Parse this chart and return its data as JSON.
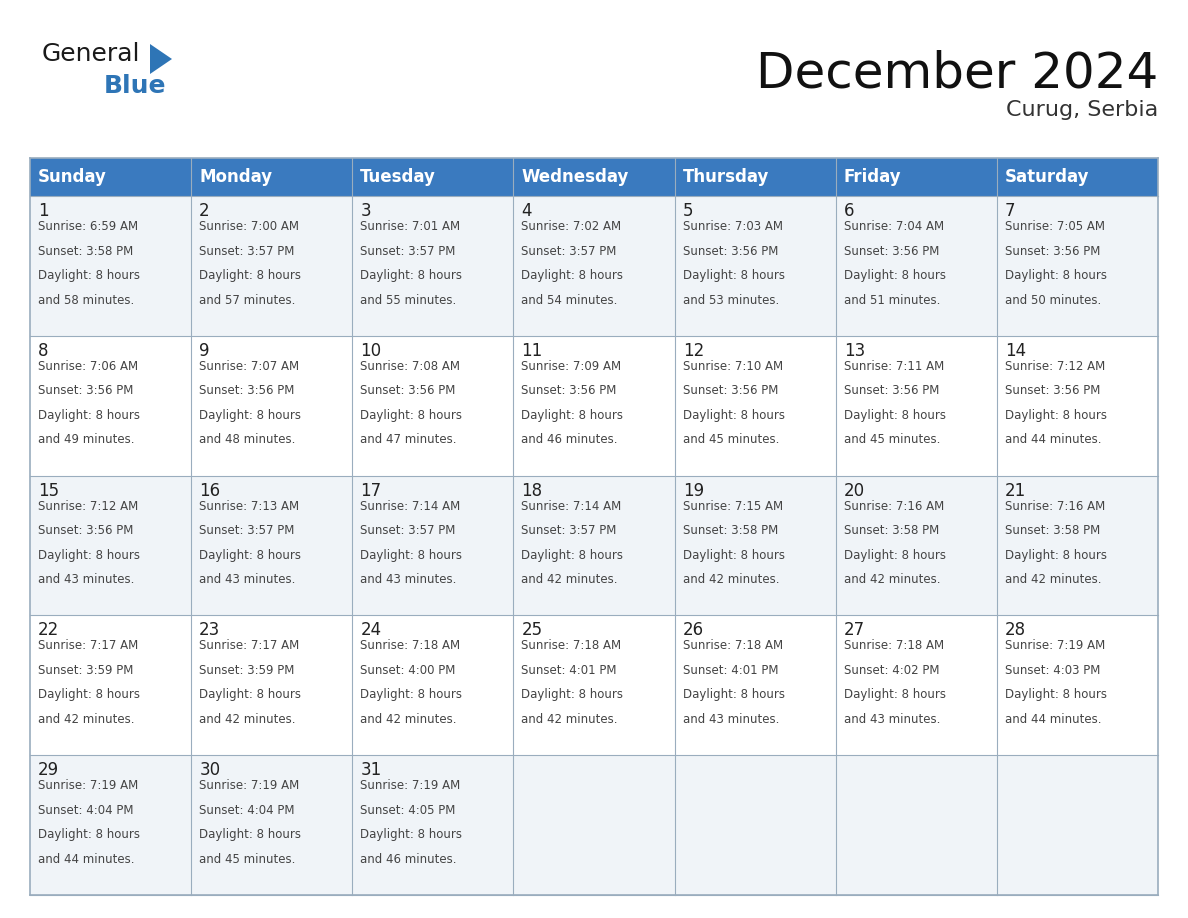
{
  "title": "December 2024",
  "subtitle": "Curug, Serbia",
  "header_color": "#3a7abf",
  "header_text_color": "#ffffff",
  "bg_color": "#ffffff",
  "cell_bg_row0": "#f0f4f8",
  "cell_bg_row1": "#ffffff",
  "cell_bg_row2": "#f0f4f8",
  "cell_bg_row3": "#ffffff",
  "cell_bg_row4": "#f0f4f8",
  "day_headers": [
    "Sunday",
    "Monday",
    "Tuesday",
    "Wednesday",
    "Thursday",
    "Friday",
    "Saturday"
  ],
  "days_data": [
    {
      "day": 1,
      "col": 0,
      "row": 0,
      "sunrise": "6:59 AM",
      "sunset": "3:58 PM",
      "daylight_l1": "Daylight: 8 hours",
      "daylight_l2": "and 58 minutes."
    },
    {
      "day": 2,
      "col": 1,
      "row": 0,
      "sunrise": "7:00 AM",
      "sunset": "3:57 PM",
      "daylight_l1": "Daylight: 8 hours",
      "daylight_l2": "and 57 minutes."
    },
    {
      "day": 3,
      "col": 2,
      "row": 0,
      "sunrise": "7:01 AM",
      "sunset": "3:57 PM",
      "daylight_l1": "Daylight: 8 hours",
      "daylight_l2": "and 55 minutes."
    },
    {
      "day": 4,
      "col": 3,
      "row": 0,
      "sunrise": "7:02 AM",
      "sunset": "3:57 PM",
      "daylight_l1": "Daylight: 8 hours",
      "daylight_l2": "and 54 minutes."
    },
    {
      "day": 5,
      "col": 4,
      "row": 0,
      "sunrise": "7:03 AM",
      "sunset": "3:56 PM",
      "daylight_l1": "Daylight: 8 hours",
      "daylight_l2": "and 53 minutes."
    },
    {
      "day": 6,
      "col": 5,
      "row": 0,
      "sunrise": "7:04 AM",
      "sunset": "3:56 PM",
      "daylight_l1": "Daylight: 8 hours",
      "daylight_l2": "and 51 minutes."
    },
    {
      "day": 7,
      "col": 6,
      "row": 0,
      "sunrise": "7:05 AM",
      "sunset": "3:56 PM",
      "daylight_l1": "Daylight: 8 hours",
      "daylight_l2": "and 50 minutes."
    },
    {
      "day": 8,
      "col": 0,
      "row": 1,
      "sunrise": "7:06 AM",
      "sunset": "3:56 PM",
      "daylight_l1": "Daylight: 8 hours",
      "daylight_l2": "and 49 minutes."
    },
    {
      "day": 9,
      "col": 1,
      "row": 1,
      "sunrise": "7:07 AM",
      "sunset": "3:56 PM",
      "daylight_l1": "Daylight: 8 hours",
      "daylight_l2": "and 48 minutes."
    },
    {
      "day": 10,
      "col": 2,
      "row": 1,
      "sunrise": "7:08 AM",
      "sunset": "3:56 PM",
      "daylight_l1": "Daylight: 8 hours",
      "daylight_l2": "and 47 minutes."
    },
    {
      "day": 11,
      "col": 3,
      "row": 1,
      "sunrise": "7:09 AM",
      "sunset": "3:56 PM",
      "daylight_l1": "Daylight: 8 hours",
      "daylight_l2": "and 46 minutes."
    },
    {
      "day": 12,
      "col": 4,
      "row": 1,
      "sunrise": "7:10 AM",
      "sunset": "3:56 PM",
      "daylight_l1": "Daylight: 8 hours",
      "daylight_l2": "and 45 minutes."
    },
    {
      "day": 13,
      "col": 5,
      "row": 1,
      "sunrise": "7:11 AM",
      "sunset": "3:56 PM",
      "daylight_l1": "Daylight: 8 hours",
      "daylight_l2": "and 45 minutes."
    },
    {
      "day": 14,
      "col": 6,
      "row": 1,
      "sunrise": "7:12 AM",
      "sunset": "3:56 PM",
      "daylight_l1": "Daylight: 8 hours",
      "daylight_l2": "and 44 minutes."
    },
    {
      "day": 15,
      "col": 0,
      "row": 2,
      "sunrise": "7:12 AM",
      "sunset": "3:56 PM",
      "daylight_l1": "Daylight: 8 hours",
      "daylight_l2": "and 43 minutes."
    },
    {
      "day": 16,
      "col": 1,
      "row": 2,
      "sunrise": "7:13 AM",
      "sunset": "3:57 PM",
      "daylight_l1": "Daylight: 8 hours",
      "daylight_l2": "and 43 minutes."
    },
    {
      "day": 17,
      "col": 2,
      "row": 2,
      "sunrise": "7:14 AM",
      "sunset": "3:57 PM",
      "daylight_l1": "Daylight: 8 hours",
      "daylight_l2": "and 43 minutes."
    },
    {
      "day": 18,
      "col": 3,
      "row": 2,
      "sunrise": "7:14 AM",
      "sunset": "3:57 PM",
      "daylight_l1": "Daylight: 8 hours",
      "daylight_l2": "and 42 minutes."
    },
    {
      "day": 19,
      "col": 4,
      "row": 2,
      "sunrise": "7:15 AM",
      "sunset": "3:58 PM",
      "daylight_l1": "Daylight: 8 hours",
      "daylight_l2": "and 42 minutes."
    },
    {
      "day": 20,
      "col": 5,
      "row": 2,
      "sunrise": "7:16 AM",
      "sunset": "3:58 PM",
      "daylight_l1": "Daylight: 8 hours",
      "daylight_l2": "and 42 minutes."
    },
    {
      "day": 21,
      "col": 6,
      "row": 2,
      "sunrise": "7:16 AM",
      "sunset": "3:58 PM",
      "daylight_l1": "Daylight: 8 hours",
      "daylight_l2": "and 42 minutes."
    },
    {
      "day": 22,
      "col": 0,
      "row": 3,
      "sunrise": "7:17 AM",
      "sunset": "3:59 PM",
      "daylight_l1": "Daylight: 8 hours",
      "daylight_l2": "and 42 minutes."
    },
    {
      "day": 23,
      "col": 1,
      "row": 3,
      "sunrise": "7:17 AM",
      "sunset": "3:59 PM",
      "daylight_l1": "Daylight: 8 hours",
      "daylight_l2": "and 42 minutes."
    },
    {
      "day": 24,
      "col": 2,
      "row": 3,
      "sunrise": "7:18 AM",
      "sunset": "4:00 PM",
      "daylight_l1": "Daylight: 8 hours",
      "daylight_l2": "and 42 minutes."
    },
    {
      "day": 25,
      "col": 3,
      "row": 3,
      "sunrise": "7:18 AM",
      "sunset": "4:01 PM",
      "daylight_l1": "Daylight: 8 hours",
      "daylight_l2": "and 42 minutes."
    },
    {
      "day": 26,
      "col": 4,
      "row": 3,
      "sunrise": "7:18 AM",
      "sunset": "4:01 PM",
      "daylight_l1": "Daylight: 8 hours",
      "daylight_l2": "and 43 minutes."
    },
    {
      "day": 27,
      "col": 5,
      "row": 3,
      "sunrise": "7:18 AM",
      "sunset": "4:02 PM",
      "daylight_l1": "Daylight: 8 hours",
      "daylight_l2": "and 43 minutes."
    },
    {
      "day": 28,
      "col": 6,
      "row": 3,
      "sunrise": "7:19 AM",
      "sunset": "4:03 PM",
      "daylight_l1": "Daylight: 8 hours",
      "daylight_l2": "and 44 minutes."
    },
    {
      "day": 29,
      "col": 0,
      "row": 4,
      "sunrise": "7:19 AM",
      "sunset": "4:04 PM",
      "daylight_l1": "Daylight: 8 hours",
      "daylight_l2": "and 44 minutes."
    },
    {
      "day": 30,
      "col": 1,
      "row": 4,
      "sunrise": "7:19 AM",
      "sunset": "4:04 PM",
      "daylight_l1": "Daylight: 8 hours",
      "daylight_l2": "and 45 minutes."
    },
    {
      "day": 31,
      "col": 2,
      "row": 4,
      "sunrise": "7:19 AM",
      "sunset": "4:05 PM",
      "daylight_l1": "Daylight: 8 hours",
      "daylight_l2": "and 46 minutes."
    }
  ],
  "num_rows": 5,
  "logo_text_general": "General",
  "logo_text_blue": "Blue",
  "logo_triangle_color": "#2e75b6",
  "logo_general_color": "#1a1a1a",
  "logo_blue_color": "#2e75b6",
  "grid_line_color": "#9aadbe",
  "title_fontsize": 36,
  "subtitle_fontsize": 16,
  "date_font_size": 12,
  "cell_text_font_size": 8.5,
  "header_font_size": 12,
  "logo_general_fontsize": 18,
  "logo_blue_fontsize": 18
}
